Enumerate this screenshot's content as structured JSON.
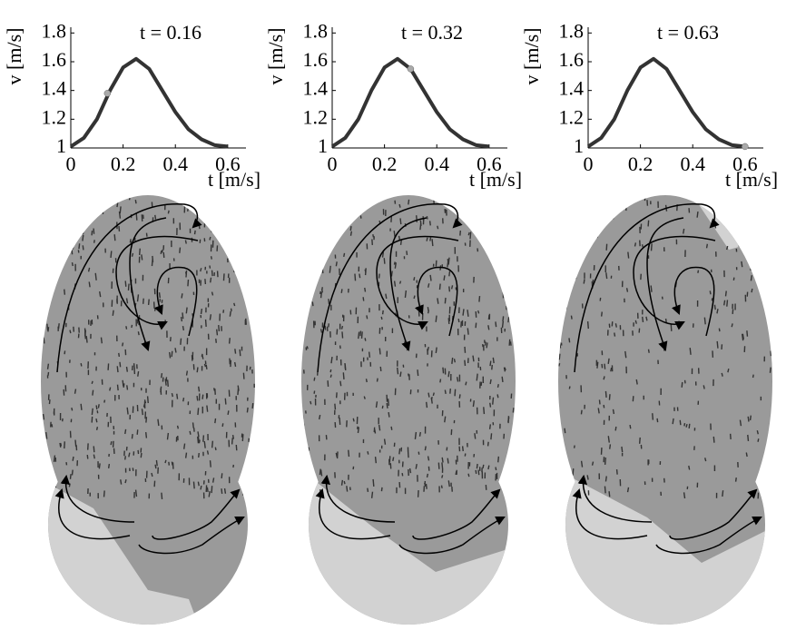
{
  "chart_data": [
    {
      "type": "line",
      "title": "t = 0.16",
      "x_label": "t [m/s]",
      "y_label": "v [m/s]",
      "x": [
        0,
        0.05,
        0.1,
        0.15,
        0.2,
        0.25,
        0.3,
        0.35,
        0.4,
        0.45,
        0.5,
        0.55,
        0.6
      ],
      "series": [
        {
          "color": "#333333",
          "values": [
            1.01,
            1.07,
            1.2,
            1.4,
            1.56,
            1.62,
            1.55,
            1.4,
            1.25,
            1.13,
            1.06,
            1.02,
            1.01
          ]
        }
      ],
      "marker": {
        "x": 0.14,
        "y": 1.38,
        "color": "#aaaaaa"
      },
      "xlim": [
        0,
        0.67
      ],
      "ylim": [
        1,
        1.84
      ],
      "xticks": [
        0,
        0.2,
        0.4,
        0.6
      ],
      "yticks": [
        1,
        1.2,
        1.4,
        1.6,
        1.8
      ]
    },
    {
      "type": "line",
      "title": "t = 0.32",
      "x_label": "t [m/s]",
      "y_label": "v [m/s]",
      "x": [
        0,
        0.05,
        0.1,
        0.15,
        0.2,
        0.25,
        0.3,
        0.35,
        0.4,
        0.45,
        0.5,
        0.55,
        0.6
      ],
      "series": [
        {
          "color": "#333333",
          "values": [
            1.01,
            1.07,
            1.2,
            1.4,
            1.56,
            1.62,
            1.55,
            1.4,
            1.25,
            1.13,
            1.06,
            1.02,
            1.01
          ]
        }
      ],
      "marker": {
        "x": 0.3,
        "y": 1.55,
        "color": "#aaaaaa"
      },
      "xlim": [
        0,
        0.67
      ],
      "ylim": [
        1,
        1.84
      ],
      "xticks": [
        0,
        0.2,
        0.4,
        0.6
      ],
      "yticks": [
        1,
        1.2,
        1.4,
        1.6,
        1.8
      ]
    },
    {
      "type": "line",
      "title": "t = 0.63",
      "x_label": "t [m/s]",
      "y_label": "v [m/s]",
      "x": [
        0,
        0.05,
        0.1,
        0.15,
        0.2,
        0.25,
        0.3,
        0.35,
        0.4,
        0.45,
        0.5,
        0.55,
        0.6
      ],
      "series": [
        {
          "color": "#333333",
          "values": [
            1.01,
            1.07,
            1.2,
            1.4,
            1.56,
            1.62,
            1.55,
            1.4,
            1.25,
            1.13,
            1.06,
            1.02,
            1.01
          ]
        }
      ],
      "marker": {
        "x": 0.6,
        "y": 1.01,
        "color": "#aaaaaa"
      },
      "xlim": [
        0,
        0.67
      ],
      "ylim": [
        1,
        1.84
      ],
      "xticks": [
        0,
        0.2,
        0.4,
        0.6
      ],
      "yticks": [
        1,
        1.2,
        1.4,
        1.6,
        1.8
      ]
    }
  ]
}
